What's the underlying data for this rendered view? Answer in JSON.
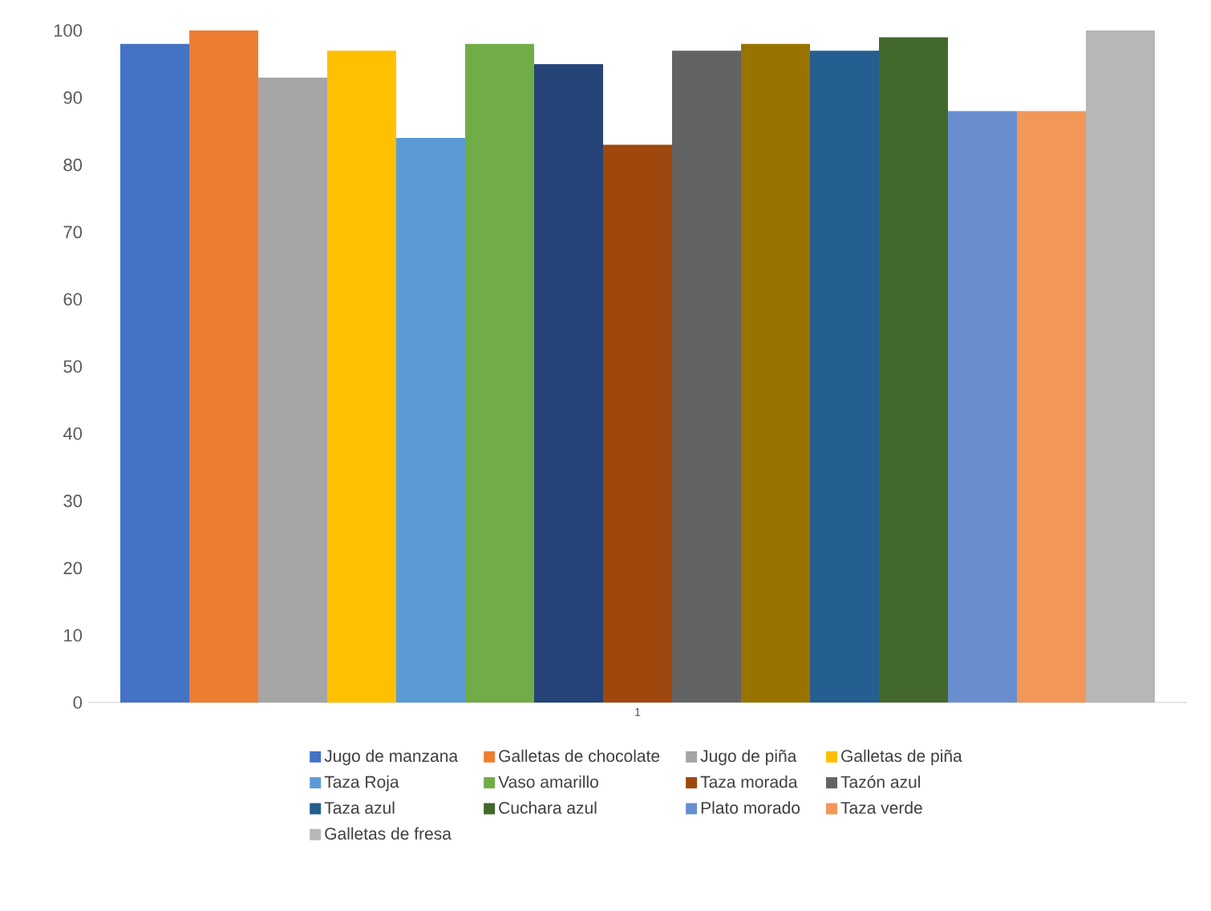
{
  "chart_data": {
    "type": "bar",
    "categories": [
      "1"
    ],
    "series": [
      {
        "name": "Jugo de manzana",
        "color": "#4472c4",
        "values": [
          98
        ]
      },
      {
        "name": "Galletas de chocolate",
        "color": "#ed7d31",
        "values": [
          100
        ]
      },
      {
        "name": "Jugo de piña",
        "color": "#a5a5a5",
        "values": [
          93
        ]
      },
      {
        "name": "Galletas de piña",
        "color": "#ffc000",
        "values": [
          97
        ]
      },
      {
        "name": "Taza Roja",
        "color": "#5b9bd5",
        "values": [
          84
        ]
      },
      {
        "name": "Vaso amarillo",
        "color": "#70ad47",
        "values": [
          98
        ]
      },
      {
        "name": null,
        "color": "#264478",
        "values": [
          95
        ]
      },
      {
        "name": "Taza morada",
        "color": "#9e480e",
        "values": [
          83
        ]
      },
      {
        "name": "Tazón azul",
        "color": "#636363",
        "values": [
          97
        ]
      },
      {
        "name": null,
        "color": "#997300",
        "values": [
          98
        ]
      },
      {
        "name": "Taza azul",
        "color": "#255e91",
        "values": [
          97
        ]
      },
      {
        "name": "Cuchara azul",
        "color": "#43682b",
        "values": [
          99
        ]
      },
      {
        "name": "Plato morado",
        "color": "#698ed0",
        "values": [
          88
        ]
      },
      {
        "name": "Taza verde",
        "color": "#f1975a",
        "values": [
          88
        ]
      },
      {
        "name": "Galletas de fresa",
        "color": "#b7b7b7",
        "values": [
          100
        ]
      }
    ],
    "ylim": [
      0,
      100
    ],
    "yticks": [
      0,
      10,
      20,
      30,
      40,
      50,
      60,
      70,
      80,
      90,
      100
    ],
    "legend": "bottom"
  }
}
